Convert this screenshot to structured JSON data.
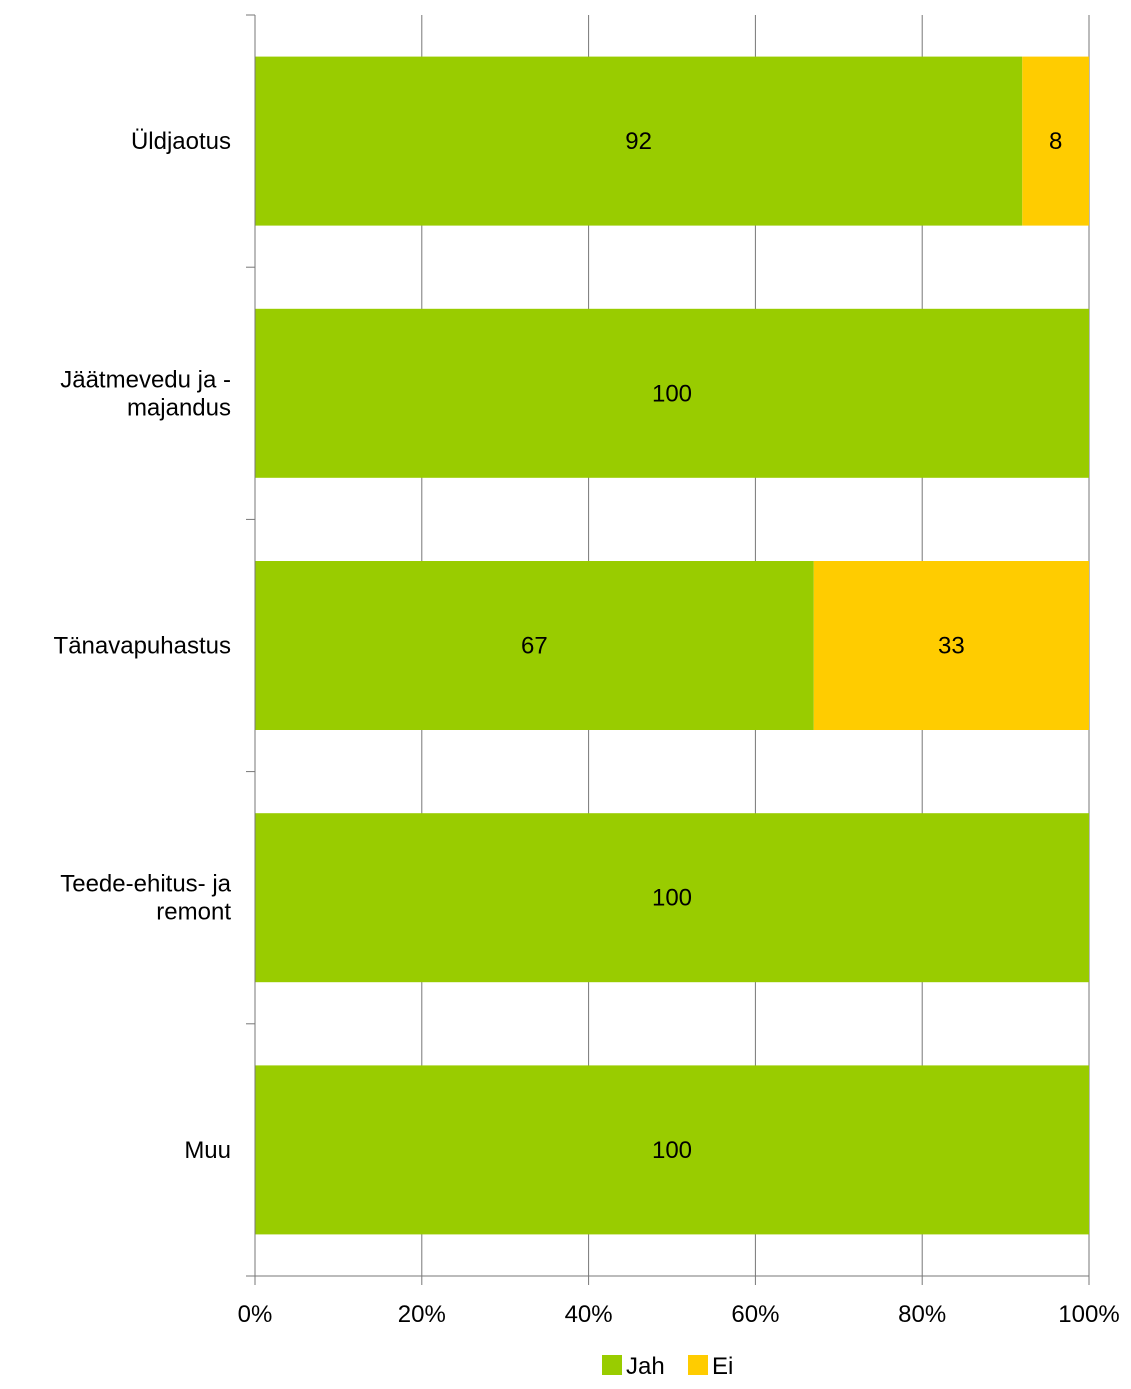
{
  "chart_data": {
    "type": "bar",
    "orientation": "horizontal",
    "stacked": "percent",
    "title": "",
    "xlabel": "",
    "ylabel": "",
    "xlim": [
      0,
      100
    ],
    "x_ticks": [
      "0%",
      "20%",
      "40%",
      "60%",
      "80%",
      "100%"
    ],
    "grid": "vertical",
    "legend_position": "bottom",
    "categories": [
      [
        "Üldjaotus"
      ],
      [
        "Jäätmevedu ja -",
        "majandus"
      ],
      [
        "Tänavapuhastus"
      ],
      [
        "Teede-ehitus- ja",
        "remont"
      ],
      [
        "Muu"
      ]
    ],
    "series": [
      {
        "name": "Jah",
        "color": "#99cc00",
        "values": [
          92,
          100,
          67,
          100,
          100
        ]
      },
      {
        "name": "Ei",
        "color": "#ffcc00",
        "values": [
          8,
          0,
          33,
          0,
          0
        ]
      }
    ]
  }
}
